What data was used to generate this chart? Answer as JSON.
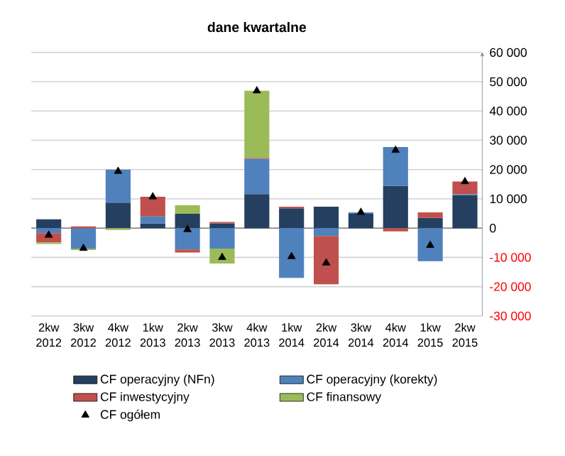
{
  "chart_data": {
    "type": "bar",
    "stacked": true,
    "title": "dane kwartalne",
    "categories": [
      "2kw 2012",
      "3kw 2012",
      "4kw 2012",
      "1kw 2013",
      "2kw 2013",
      "3kw 2013",
      "4kw 2013",
      "1kw 2014",
      "2kw 2014",
      "3kw 2014",
      "4kw 2014",
      "1kw 2015",
      "2kw 2015"
    ],
    "series": [
      {
        "name": "CF operacyjny (NFn)",
        "color": "#243f60",
        "values": [
          3000,
          0,
          8700,
          1600,
          4900,
          1600,
          11600,
          6800,
          7300,
          4900,
          14400,
          3500,
          11300
        ]
      },
      {
        "name": "CF operacyjny (korekty)",
        "color": "#4f81bd",
        "values": [
          -1700,
          -7000,
          11300,
          2400,
          -7300,
          -7000,
          12100,
          -17000,
          -2700,
          500,
          13300,
          -11300,
          300
        ]
      },
      {
        "name": "CF inwestycyjny",
        "color": "#c0504d",
        "values": [
          -3200,
          600,
          0,
          6700,
          -1000,
          500,
          300,
          500,
          -16500,
          0,
          -1100,
          1900,
          4300
        ]
      },
      {
        "name": "CF finansowy",
        "color": "#9bbb59",
        "values": [
          -500,
          -500,
          -600,
          0,
          2900,
          -5100,
          22900,
          0,
          0,
          0,
          0,
          0,
          0
        ]
      },
      {
        "name": "CF ogółem",
        "type": "scatter",
        "marker": "triangle",
        "color": "#000000",
        "values": [
          -2400,
          -6900,
          19400,
          10700,
          -500,
          -10000,
          46900,
          -9700,
          -11900,
          5400,
          26600,
          -5900,
          15900
        ]
      }
    ],
    "ylim": [
      -30000,
      60000
    ],
    "yticks": [
      {
        "value": -30000,
        "label": "-30 000"
      },
      {
        "value": -20000,
        "label": "-20 000"
      },
      {
        "value": -10000,
        "label": "-10 000"
      },
      0,
      {
        "value": 10000,
        "label": "10 000"
      },
      {
        "value": 20000,
        "label": "20 000"
      },
      {
        "value": 30000,
        "label": "30 000"
      },
      {
        "value": 40000,
        "label": "40 000"
      },
      {
        "value": 50000,
        "label": "50 000"
      },
      {
        "value": 60000,
        "label": "60 000"
      }
    ],
    "grid": "y",
    "legend": "bottom"
  }
}
